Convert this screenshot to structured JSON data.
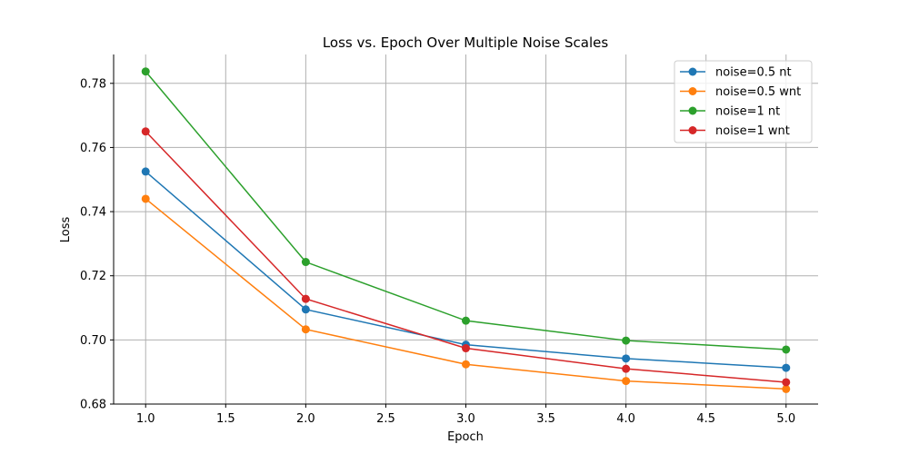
{
  "chart_data": {
    "type": "line",
    "title": "Loss vs. Epoch Over Multiple Noise Scales",
    "xlabel": "Epoch",
    "ylabel": "Loss",
    "xlim": [
      0.8,
      5.2
    ],
    "ylim": [
      0.68,
      0.789
    ],
    "xticks": [
      1.0,
      1.5,
      2.0,
      2.5,
      3.0,
      3.5,
      4.0,
      4.5,
      5.0
    ],
    "xtick_labels": [
      "1.0",
      "1.5",
      "2.0",
      "2.5",
      "3.0",
      "3.5",
      "4.0",
      "4.5",
      "5.0"
    ],
    "yticks": [
      0.68,
      0.7,
      0.72,
      0.74,
      0.76,
      0.78
    ],
    "ytick_labels": [
      "0.68",
      "0.70",
      "0.72",
      "0.74",
      "0.76",
      "0.78"
    ],
    "grid": true,
    "legend_position": "top-right",
    "x": [
      1,
      2,
      3,
      4,
      5
    ],
    "series": [
      {
        "name": "noise=0.5 nt",
        "color": "#1f77b4",
        "values": [
          0.7525,
          0.7095,
          0.6985,
          0.6942,
          0.6913
        ]
      },
      {
        "name": "noise=0.5 wnt",
        "color": "#ff7f0e",
        "values": [
          0.744,
          0.7033,
          0.6924,
          0.6872,
          0.6847
        ]
      },
      {
        "name": "noise=1 nt",
        "color": "#2ca02c",
        "values": [
          0.7837,
          0.7243,
          0.706,
          0.6998,
          0.697
        ]
      },
      {
        "name": "noise=1 wnt",
        "color": "#d62728",
        "values": [
          0.765,
          0.7128,
          0.6974,
          0.691,
          0.6868
        ]
      }
    ]
  }
}
